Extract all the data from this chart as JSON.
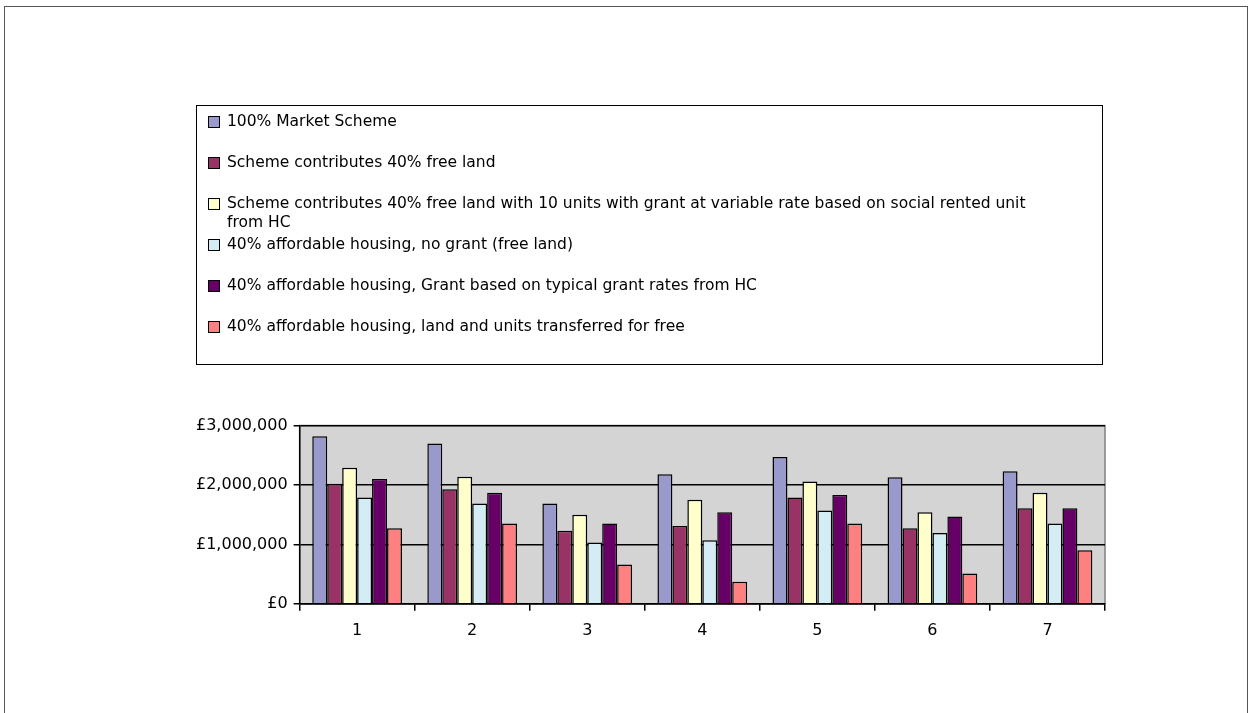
{
  "chart_data": {
    "type": "bar",
    "categories": [
      "1",
      "2",
      "3",
      "4",
      "5",
      "6",
      "7"
    ],
    "series": [
      {
        "name": "100% Market Scheme",
        "color": "#9999cc",
        "values": [
          2820000,
          2700000,
          1690000,
          2180000,
          2470000,
          2130000,
          2230000
        ]
      },
      {
        "name": "Scheme contributes 40% free land",
        "color": "#993366",
        "values": [
          2020000,
          1930000,
          1230000,
          1310000,
          1790000,
          1270000,
          1610000
        ]
      },
      {
        "name": "Scheme contributes 40% free land with 10 units with grant at variable rate based on social rented unit from HC",
        "color": "#ffffcc",
        "values": [
          2290000,
          2140000,
          1500000,
          1750000,
          2060000,
          1540000,
          1870000
        ]
      },
      {
        "name": "40% affordable housing, no grant (free land)",
        "color": "#d4ecf4",
        "values": [
          1790000,
          1690000,
          1030000,
          1070000,
          1570000,
          1190000,
          1350000
        ]
      },
      {
        "name": "40% affordable housing, Grant based on typical grant rates from HC",
        "color": "#660066",
        "values": [
          2100000,
          1870000,
          1350000,
          1540000,
          1830000,
          1470000,
          1610000
        ]
      },
      {
        "name": "40% affordable housing, land and units transferred for free",
        "color": "#ff8080",
        "values": [
          1270000,
          1350000,
          660000,
          370000,
          1350000,
          510000,
          900000
        ]
      }
    ],
    "ylim": [
      0,
      3000000
    ],
    "yticks": [
      {
        "value": 0,
        "label": "£0"
      },
      {
        "value": 1000000,
        "label": "£1,000,000"
      },
      {
        "value": 2000000,
        "label": "£2,000,000"
      },
      {
        "value": 3000000,
        "label": "£3,000,000"
      }
    ],
    "grid": "y",
    "legend": "top"
  }
}
